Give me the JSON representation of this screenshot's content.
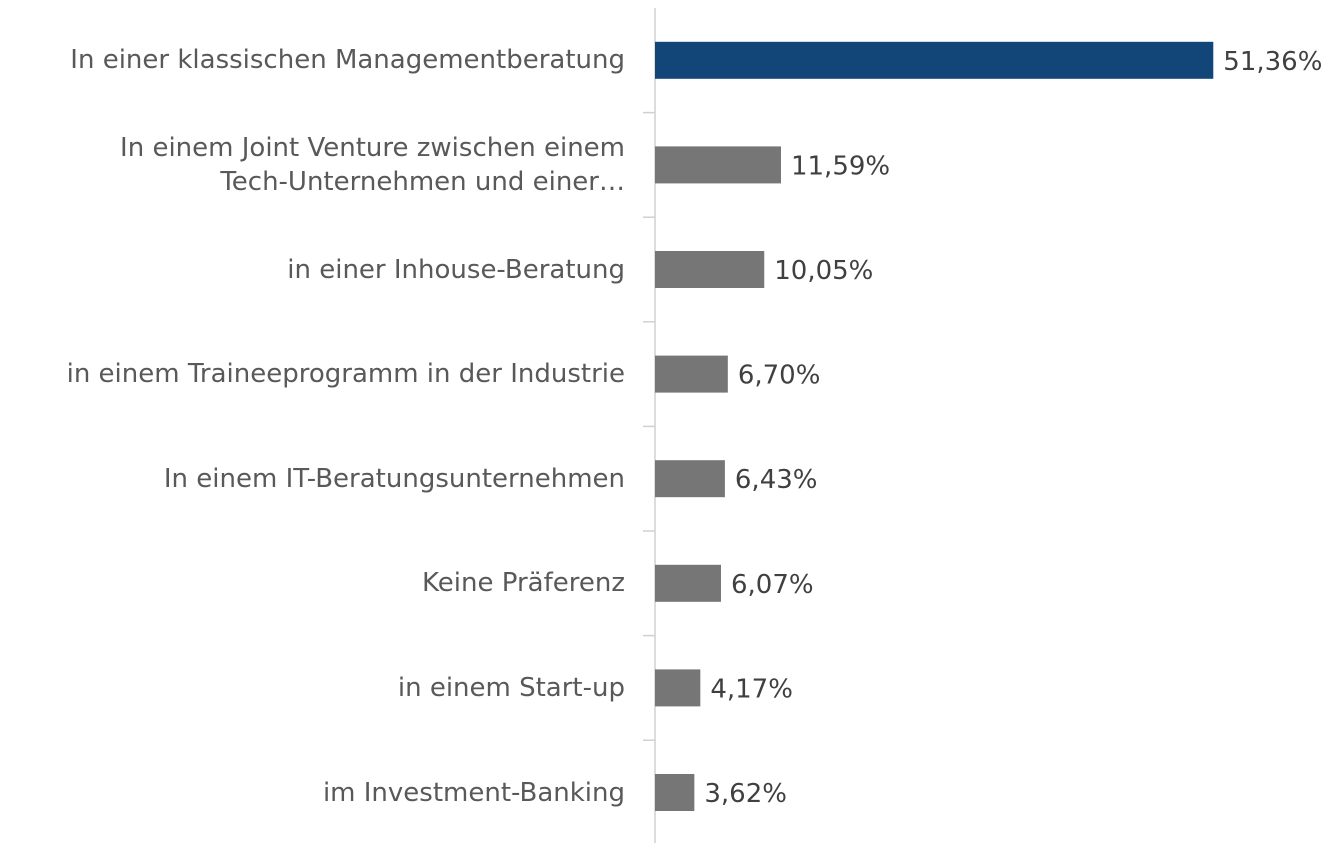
{
  "chart_data": {
    "type": "barh",
    "categories": [
      "In einer klassischen Managementberatung",
      "In einem Joint Venture zwischen einem\nTech-Unternehmen und einer…",
      "in einer Inhouse-Beratung",
      "in einem Traineeprogramm in der Industrie",
      "In einem IT-Beratungsunternehmen",
      "Keine Präferenz",
      "in einem Start-up",
      "im Investment-Banking"
    ],
    "values": [
      51.36,
      11.59,
      10.05,
      6.7,
      6.43,
      6.07,
      4.17,
      3.62
    ],
    "value_labels": [
      "51,36%",
      "11,59%",
      "10,05%",
      "6,70%",
      "6,43%",
      "6,07%",
      "4,17%",
      "3,62%"
    ],
    "colors": [
      "#124678",
      "#767676",
      "#767676",
      "#767676",
      "#767676",
      "#767676",
      "#767676",
      "#767676"
    ]
  }
}
